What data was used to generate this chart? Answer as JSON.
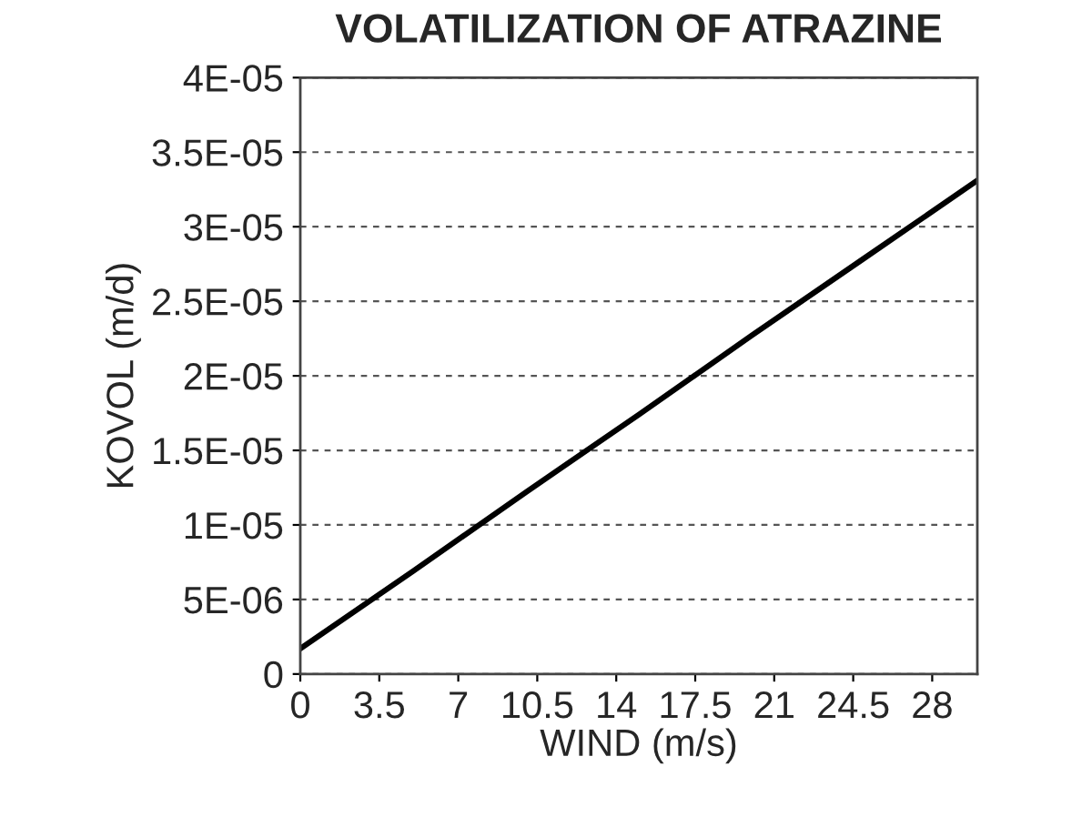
{
  "chart_data": {
    "type": "line",
    "title": "VOLATILIZATION OF ATRAZINE",
    "xlabel": "WIND (m/s)",
    "ylabel": "KOVOL (m/d)",
    "series": [
      {
        "color": "#000000",
        "x": [
          0,
          5,
          10,
          15,
          20,
          25,
          30
        ],
        "values": [
          1.7e-06,
          6.9e-06,
          1.22e-05,
          1.74e-05,
          2.27e-05,
          2.79e-05,
          3.31e-05
        ]
      }
    ],
    "xlim": [
      0,
      30
    ],
    "xticks": [
      0,
      3.5,
      7,
      10.5,
      14,
      17.5,
      21,
      24.5,
      28
    ],
    "ylim": [
      0,
      4e-05
    ],
    "yticks": [
      {
        "value": 0,
        "label": "0"
      },
      {
        "value": 5e-06,
        "label": "5E-06"
      },
      {
        "value": 1e-05,
        "label": "1E-05"
      },
      {
        "value": 1.5e-05,
        "label": "1.5E-05"
      },
      {
        "value": 2e-05,
        "label": "2E-05"
      },
      {
        "value": 2.5e-05,
        "label": "2.5E-05"
      },
      {
        "value": 3e-05,
        "label": "3E-05"
      },
      {
        "value": 3.5e-05,
        "label": "3.5E-05"
      },
      {
        "value": 4e-05,
        "label": "4E-05"
      }
    ],
    "grid": "y",
    "legend": false,
    "marker": "none",
    "line_style": "solid"
  }
}
